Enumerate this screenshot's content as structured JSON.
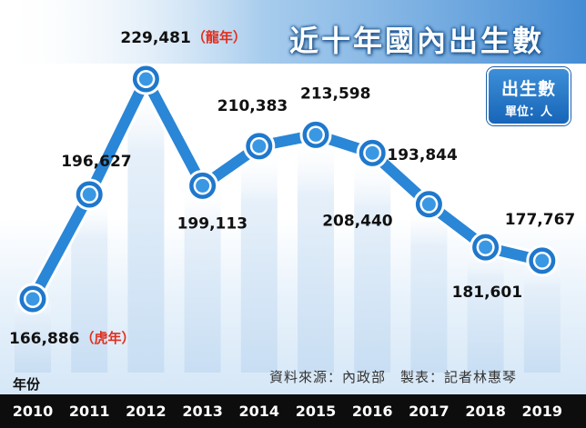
{
  "chart_data": {
    "type": "line",
    "title": "近十年國內出生數",
    "legend_title": "出生數",
    "unit": "單位：人",
    "xlabel": "年份",
    "ylabel": "",
    "categories": [
      "2010",
      "2011",
      "2012",
      "2013",
      "2014",
      "2015",
      "2016",
      "2017",
      "2018",
      "2019"
    ],
    "values": [
      166886,
      196627,
      229481,
      199113,
      210383,
      213598,
      208440,
      193844,
      181601,
      177767
    ],
    "value_labels": [
      "166,886",
      "196,627",
      "229,481",
      "199,113",
      "210,383",
      "213,598",
      "208,440",
      "193,844",
      "181,601",
      "177,767"
    ],
    "annotations": [
      {
        "category": "2010",
        "text": "（虎年）"
      },
      {
        "category": "2012",
        "text": "（龍年）"
      }
    ],
    "ylim": [
      160000,
      235000
    ],
    "grid": false,
    "source": "資料來源：內政部　製表：記者林惠琴",
    "colors": {
      "line": "#2a86d6",
      "marker": "#1f78cc",
      "stripe": "#d9e8f6",
      "axis_bar": "#0d0d0d",
      "annotation": "#e0301e"
    }
  }
}
